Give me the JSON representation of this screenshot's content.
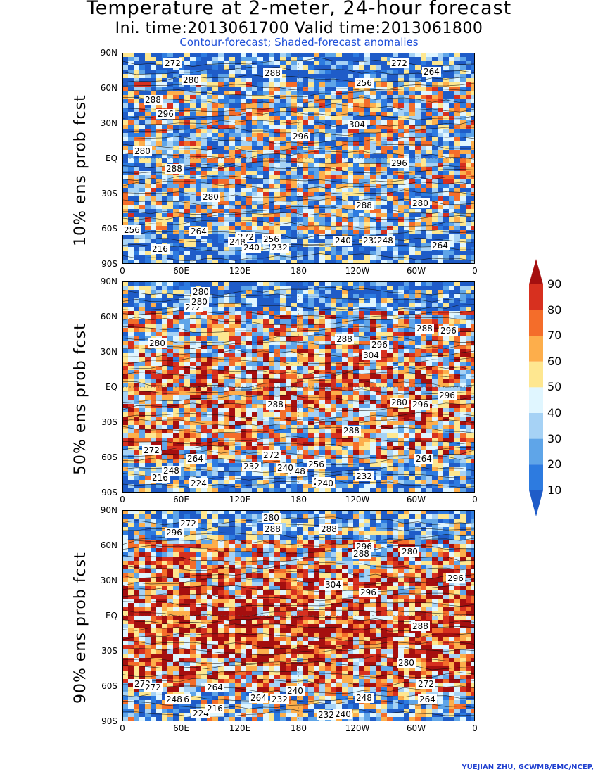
{
  "header": {
    "title": "Temperature at 2-meter, 24-hour forecast",
    "subtitle": "Ini. time:2013061700    Valid time:2013061800",
    "legend_note": "Contour-forecast; Shaded-forecast anomalies"
  },
  "lat_ticks": [
    "90N",
    "60N",
    "30N",
    "EQ",
    "30S",
    "60S",
    "90S"
  ],
  "lon_ticks": [
    "0",
    "60E",
    "120E",
    "180",
    "120W",
    "60W",
    "0"
  ],
  "panels": [
    {
      "label": "10% ens prob fcst",
      "contour_labels": [
        "272",
        "280",
        "288",
        "296",
        "304",
        "280",
        "264",
        "272",
        "256",
        "248",
        "240",
        "232",
        "216",
        "288",
        "296",
        "280",
        "288",
        "296",
        "288",
        "280",
        "272",
        "264",
        "256",
        "240",
        "232",
        "248",
        "264",
        "256"
      ]
    },
    {
      "label": "50% ens prob fcst",
      "contour_labels": [
        "272",
        "280",
        "288",
        "296",
        "304",
        "288",
        "280",
        "296",
        "272",
        "264",
        "256",
        "248",
        "240",
        "232",
        "224",
        "216",
        "280",
        "296",
        "288",
        "272",
        "264",
        "248",
        "240",
        "232",
        "224",
        "280",
        "296",
        "288"
      ]
    },
    {
      "label": "90% ens prob fcst",
      "contour_labels": [
        "272",
        "280",
        "288",
        "296",
        "304",
        "296",
        "288",
        "280",
        "272",
        "264",
        "256",
        "248",
        "240",
        "232",
        "224",
        "216",
        "288",
        "296",
        "280",
        "272",
        "264",
        "248",
        "240",
        "232",
        "296",
        "288",
        "272",
        "264"
      ]
    }
  ],
  "colorbar": {
    "ticks": [
      "90",
      "80",
      "70",
      "60",
      "50",
      "40",
      "30",
      "20",
      "10"
    ],
    "colors": [
      "#a50f0f",
      "#d7301f",
      "#f46d2a",
      "#fdae4b",
      "#fee790",
      "#e0f6ff",
      "#a6d2f5",
      "#5fa5e8",
      "#2d7be0",
      "#1f5cc8"
    ]
  },
  "credit": "YUEJIAN ZHU, GCWMB/EMC/NCEP,"
}
